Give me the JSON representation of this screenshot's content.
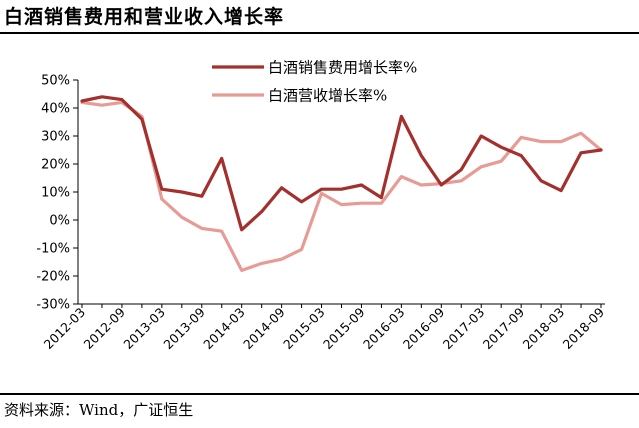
{
  "title": "白酒销售费用和营业收入增长率",
  "source": "资料来源：Wind，广证恒生",
  "colors": {
    "series1": "#a3302d",
    "series2": "#e89a95"
  },
  "chart_data": {
    "type": "line",
    "title": "白酒销售费用和营业收入增长率",
    "x": [
      "2012-03",
      "2012-06",
      "2012-09",
      "2012-12",
      "2013-03",
      "2013-06",
      "2013-09",
      "2013-12",
      "2014-03",
      "2014-06",
      "2014-09",
      "2014-12",
      "2015-03",
      "2015-06",
      "2015-09",
      "2015-12",
      "2016-03",
      "2016-06",
      "2016-09",
      "2016-12",
      "2017-03",
      "2017-06",
      "2017-09",
      "2017-12",
      "2018-03",
      "2018-06",
      "2018-09"
    ],
    "x_tick_labels": [
      "2012-03",
      "2012-09",
      "2013-03",
      "2013-09",
      "2014-03",
      "2014-09",
      "2015-03",
      "2015-09",
      "2016-03",
      "2016-09",
      "2017-03",
      "2017-09",
      "2018-03",
      "2018-09"
    ],
    "y_tick_labels": [
      "50%",
      "40%",
      "30%",
      "20%",
      "10%",
      "0%",
      "-10%",
      "-20%",
      "-30%"
    ],
    "ylim": [
      -30,
      50
    ],
    "ytick_step": 10,
    "legend_position": "top-right",
    "grid": false,
    "series": [
      {
        "name": "白酒销售费用增长率%",
        "values": [
          42.5,
          44,
          43,
          36,
          11,
          10,
          8.5,
          22,
          -3.5,
          3,
          11.5,
          6.5,
          11,
          11,
          12.5,
          8,
          37,
          23,
          12.5,
          18,
          30,
          26,
          23,
          14,
          10.5,
          24,
          25
        ]
      },
      {
        "name": "白酒营收增长率%",
        "values": [
          42,
          41,
          42,
          37,
          7.5,
          1,
          -3,
          -4,
          -18,
          -15.5,
          -14,
          -10.5,
          9.5,
          5.5,
          6,
          6,
          15.5,
          12.5,
          13,
          14,
          19,
          21,
          29.5,
          28,
          28,
          31,
          25
        ]
      }
    ]
  }
}
